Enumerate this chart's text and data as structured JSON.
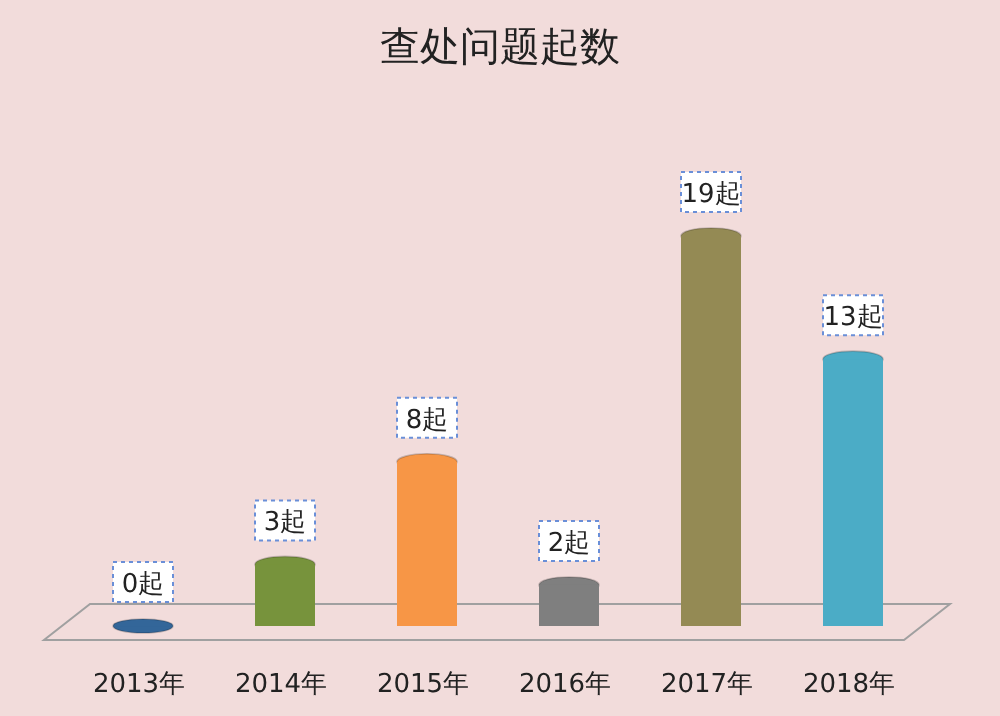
{
  "chart_data": {
    "type": "bar",
    "title": "查处问题起数",
    "categories": [
      "2013年",
      "2014年",
      "2015年",
      "2016年",
      "2017年",
      "2018年"
    ],
    "values": [
      0,
      3,
      8,
      2,
      19,
      13
    ],
    "value_labels": [
      "0起",
      "3起",
      "8起",
      "2起",
      "19起",
      "13起"
    ],
    "colors": [
      "#336699",
      "#77933c",
      "#f79646",
      "#7f7f7f",
      "#948a54",
      "#4bacc6"
    ]
  }
}
